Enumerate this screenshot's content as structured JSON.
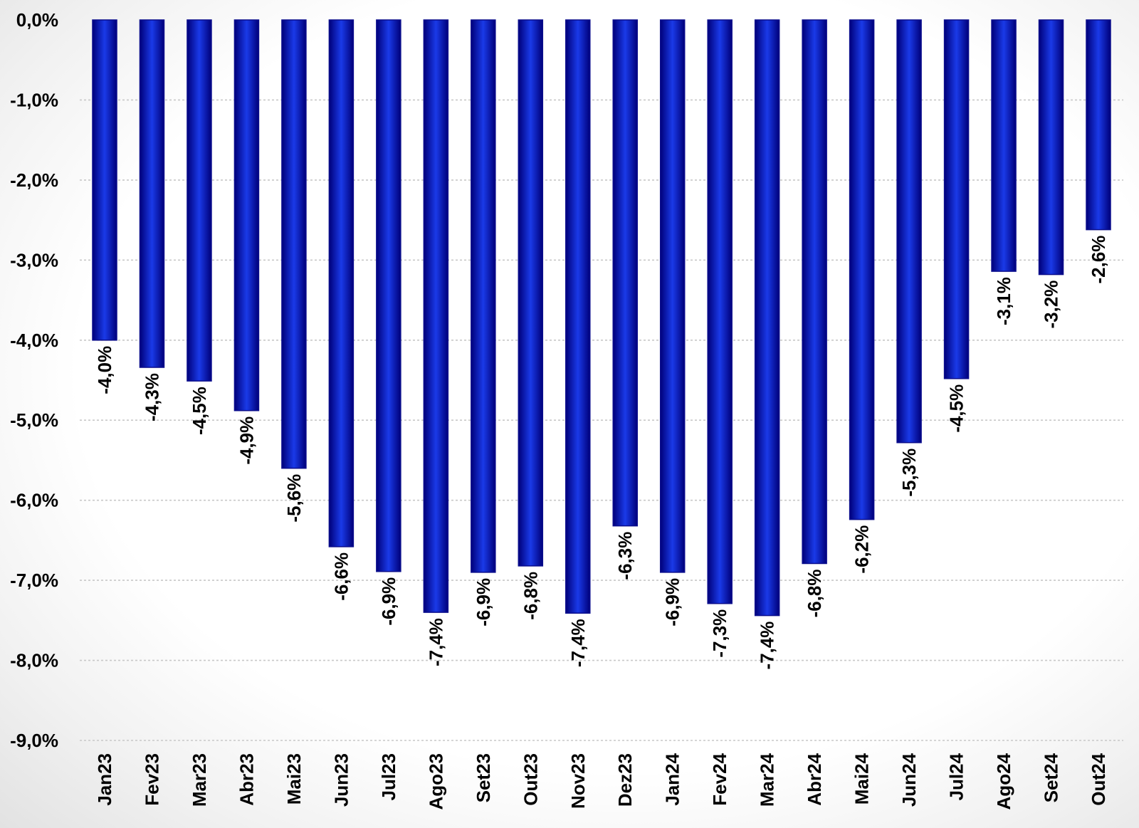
{
  "chart_data": {
    "type": "bar",
    "title": "",
    "xlabel": "",
    "ylabel": "",
    "categories": [
      "Jan23",
      "Fev23",
      "Mar23",
      "Abr23",
      "Mai23",
      "Jun23",
      "Jul23",
      "Ago23",
      "Set23",
      "Out23",
      "Nov23",
      "Dez23",
      "Jan24",
      "Fev24",
      "Mar24",
      "Abr24",
      "Mai24",
      "Jun24",
      "Jul24",
      "Ago24",
      "Set24",
      "Out24"
    ],
    "values": [
      -4.0,
      -4.34,
      -4.51,
      -4.88,
      -5.6,
      -6.58,
      -6.89,
      -7.4,
      -6.9,
      -6.82,
      -7.41,
      -6.32,
      -6.9,
      -7.29,
      -7.44,
      -6.79,
      -6.24,
      -5.28,
      -4.48,
      -3.14,
      -3.18,
      -2.62
    ],
    "data_labels": [
      "-4,0%",
      "-4,3%",
      "-4,5%",
      "-4,9%",
      "-5,6%",
      "-6,6%",
      "-6,9%",
      "-7,4%",
      "-6,9%",
      "-6,8%",
      "-7,4%",
      "-6,3%",
      "-6,9%",
      "-7,3%",
      "-7,4%",
      "-6,8%",
      "-6,2%",
      "-5,3%",
      "-4,5%",
      "-3,1%",
      "-3,2%",
      "-2,6%"
    ],
    "ylim": [
      -9.0,
      0.0
    ],
    "y_ticks": [
      0,
      -1,
      -2,
      -3,
      -4,
      -5,
      -6,
      -7,
      -8,
      -9
    ],
    "y_tick_labels": [
      "0,0%",
      "-1,0%",
      "-2,0%",
      "-3,0%",
      "-4,0%",
      "-5,0%",
      "-6,0%",
      "-7,0%",
      "-8,0%",
      "-9,0%"
    ],
    "grid": true,
    "legend": "none",
    "colors": {
      "bar_edge": "#0a0d8c",
      "bar_center": "#1a3ae8",
      "bar_dark": "#00007a",
      "text": "#000000"
    }
  }
}
